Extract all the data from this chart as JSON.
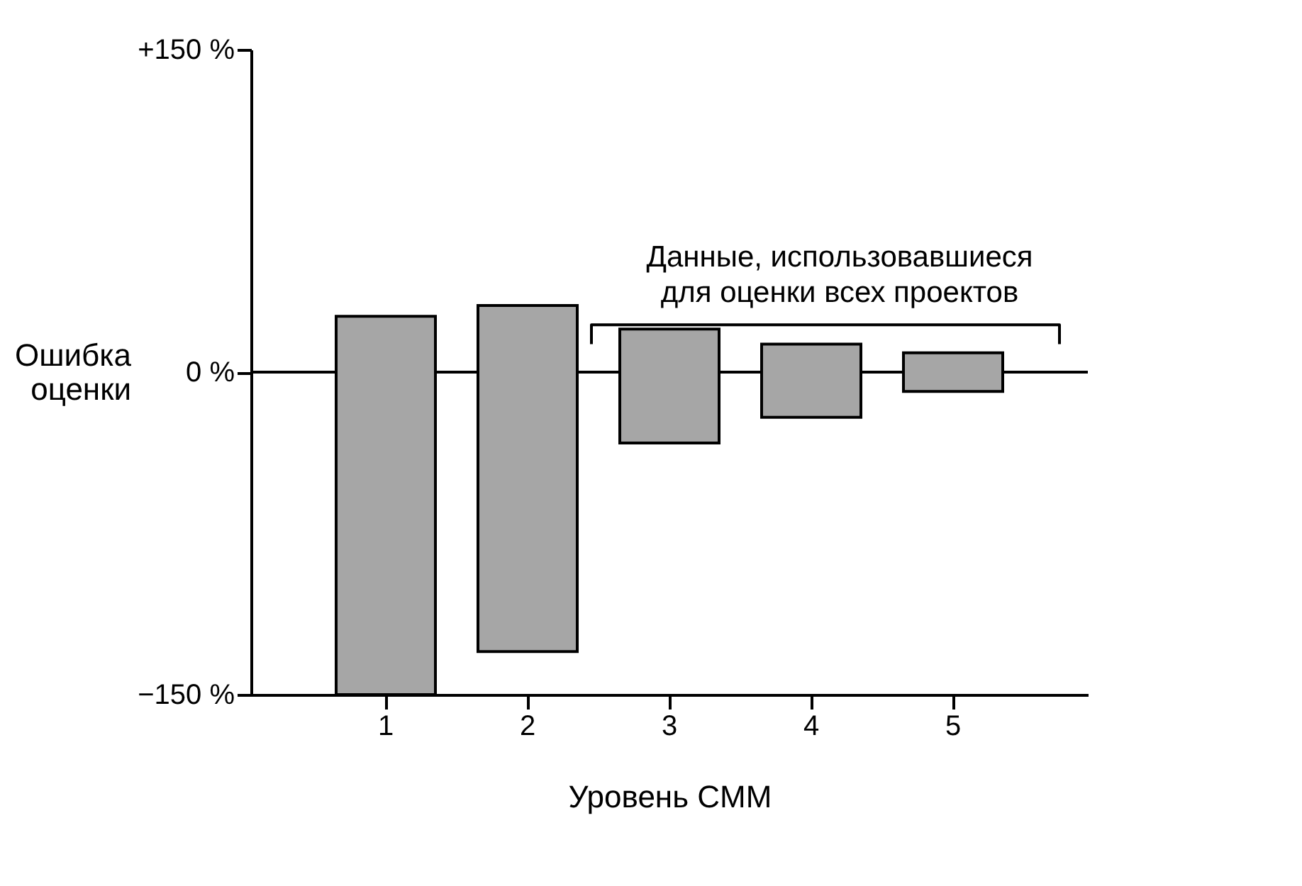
{
  "chart_data": {
    "type": "bar",
    "xlabel": "Уровень CMM",
    "ylabel": "Ошибка оценки",
    "categories": [
      "1",
      "2",
      "3",
      "4",
      "5"
    ],
    "base": [
      -150,
      -130,
      -33,
      -21,
      -9
    ],
    "values": [
      176,
      161,
      53,
      34,
      18
    ],
    "color": "#a6a6a6",
    "ylim": [
      -150,
      150
    ],
    "yticks": [
      {
        "value": -150,
        "label": "−150 %"
      },
      {
        "value": 0,
        "label": "0 %"
      },
      {
        "value": 150,
        "label": "+150 %"
      }
    ],
    "ref_lines": [
      {
        "axis": "y",
        "value": 0
      }
    ],
    "annotations": [
      "Данные, использовавшиеся для оценки всех проектов"
    ]
  }
}
